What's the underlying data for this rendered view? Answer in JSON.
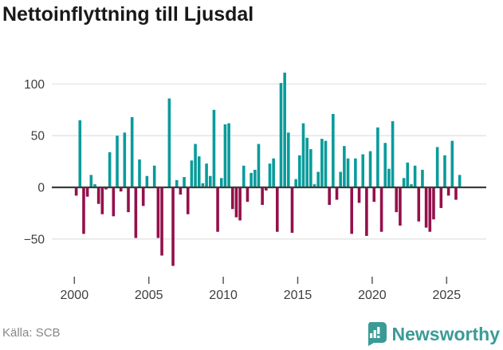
{
  "title": "Nettoinflyttning till Ljusdal",
  "footer": {
    "source": "Källa: SCB"
  },
  "logo": {
    "text": "Newsworthy"
  },
  "chart_data": {
    "type": "bar",
    "title": "Nettoinflyttning till Ljusdal",
    "xlabel": "",
    "ylabel": "",
    "frequency": "quarterly",
    "start_period": "2000Q1",
    "end_period": "2025Q4",
    "x_tick_labels": [
      "2000",
      "2005",
      "2010",
      "2015",
      "2020",
      "2025"
    ],
    "x_tick_years": [
      2000,
      2005,
      2010,
      2015,
      2020,
      2025
    ],
    "y_ticks": [
      100,
      50,
      0,
      -50
    ],
    "y_tick_labels": [
      "100",
      "50",
      "0",
      "−50"
    ],
    "ylim": [
      -85,
      118
    ],
    "grid": true,
    "legend": false,
    "colors": {
      "positive": "#0a9b9b",
      "negative": "#94104a",
      "zero_line": "#3d3d3d",
      "gridline": "#e3e3e3",
      "tick": "#5a5a5a",
      "axis_text": "#3d3d3d"
    },
    "values": [
      -8,
      65,
      -45,
      -9,
      12,
      3,
      -16,
      -26,
      -2,
      34,
      -28,
      50,
      -4,
      53,
      -24,
      68,
      -49,
      27,
      -18,
      11,
      0,
      21,
      -49,
      -66,
      0,
      86,
      -76,
      7,
      -7,
      10,
      -26,
      26,
      42,
      30,
      4,
      23,
      11,
      75,
      -43,
      9,
      61,
      62,
      -21,
      -29,
      -32,
      21,
      -14,
      14,
      17,
      42,
      -17,
      -3,
      23,
      28,
      -43,
      101,
      111,
      53,
      -44,
      8,
      31,
      62,
      48,
      37,
      3,
      15,
      47,
      45,
      -17,
      71,
      -12,
      15,
      40,
      28,
      -45,
      28,
      -15,
      32,
      -47,
      35,
      -14,
      58,
      -43,
      43,
      18,
      64,
      -24,
      -37,
      9,
      24,
      3,
      21,
      -33,
      17,
      -39,
      -43,
      -31,
      39,
      -20,
      31,
      -8,
      45,
      -12,
      12
    ]
  }
}
